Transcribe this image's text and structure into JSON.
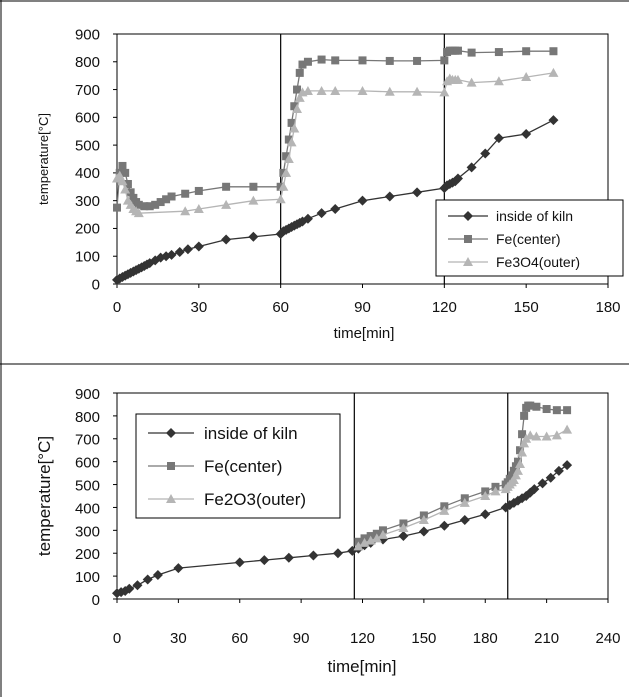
{
  "chart_data": [
    {
      "type": "line",
      "xlabel": "time[min]",
      "ylabel": "temperature[°C]",
      "xlim": [
        0,
        180
      ],
      "ylim": [
        0,
        900
      ],
      "xticks": [
        "0",
        "30",
        "60",
        "90",
        "120",
        "150",
        "180"
      ],
      "yticks": [
        "0",
        "100",
        "200",
        "300",
        "400",
        "500",
        "600",
        "700",
        "800",
        "900"
      ],
      "vlines": [
        60,
        120
      ],
      "legend_position": "lower-right",
      "grid": false,
      "series": [
        {
          "name": "inside of kiln",
          "marker": "diamond",
          "color": "#333333",
          "x": [
            0,
            1,
            2,
            3,
            4,
            5,
            6,
            7,
            8,
            9,
            10,
            11,
            12,
            14,
            16,
            18,
            20,
            23,
            26,
            30,
            40,
            50,
            60,
            61,
            62,
            63,
            64,
            65,
            66,
            67,
            68,
            70,
            75,
            80,
            90,
            100,
            110,
            120,
            121,
            122,
            123,
            124,
            125,
            130,
            135,
            140,
            150,
            160
          ],
          "y": [
            15,
            20,
            25,
            30,
            35,
            40,
            45,
            50,
            55,
            60,
            65,
            70,
            75,
            85,
            95,
            100,
            105,
            115,
            125,
            135,
            160,
            170,
            180,
            190,
            195,
            200,
            205,
            210,
            215,
            220,
            225,
            235,
            255,
            270,
            300,
            315,
            330,
            345,
            355,
            360,
            365,
            370,
            380,
            420,
            470,
            525,
            540,
            590
          ]
        },
        {
          "name": "Fe(center)",
          "marker": "square",
          "color": "#777777",
          "x": [
            0,
            1,
            2,
            3,
            4,
            5,
            6,
            7,
            8,
            10,
            12,
            14,
            16,
            18,
            20,
            25,
            30,
            40,
            50,
            60,
            61,
            62,
            63,
            64,
            65,
            66,
            67,
            68,
            70,
            75,
            80,
            90,
            100,
            110,
            120,
            121,
            122,
            123,
            124,
            125,
            130,
            140,
            150,
            160
          ],
          "y": [
            275,
            400,
            425,
            400,
            360,
            330,
            310,
            295,
            285,
            280,
            280,
            285,
            295,
            305,
            315,
            325,
            335,
            350,
            350,
            350,
            400,
            460,
            520,
            580,
            640,
            700,
            760,
            790,
            800,
            808,
            805,
            805,
            803,
            803,
            805,
            835,
            840,
            840,
            840,
            840,
            833,
            835,
            838,
            838
          ]
        },
        {
          "name": "Fe3O4(outer)",
          "marker": "triangle",
          "color": "#b5b5b5",
          "x": [
            0,
            1,
            2,
            3,
            4,
            5,
            6,
            7,
            8,
            25,
            30,
            40,
            50,
            60,
            61,
            62,
            63,
            64,
            65,
            66,
            67,
            68,
            70,
            75,
            80,
            90,
            100,
            110,
            120,
            121,
            122,
            123,
            124,
            125,
            130,
            140,
            150,
            160
          ],
          "y": [
            380,
            390,
            370,
            340,
            300,
            285,
            270,
            262,
            255,
            262,
            270,
            285,
            300,
            305,
            350,
            400,
            450,
            510,
            560,
            630,
            670,
            690,
            695,
            695,
            695,
            695,
            692,
            692,
            690,
            730,
            740,
            735,
            735,
            735,
            725,
            730,
            745,
            760
          ]
        }
      ]
    },
    {
      "type": "line",
      "xlabel": "time[min]",
      "ylabel": "temperature[°C]",
      "xlim": [
        0,
        240
      ],
      "ylim": [
        0,
        900
      ],
      "xticks": [
        "0",
        "30",
        "60",
        "90",
        "120",
        "150",
        "180",
        "210",
        "240"
      ],
      "yticks": [
        "0",
        "100",
        "200",
        "300",
        "400",
        "500",
        "600",
        "700",
        "800",
        "900"
      ],
      "vlines": [
        116,
        191
      ],
      "legend_position": "top-left",
      "grid": false,
      "series": [
        {
          "name": "inside of kiln",
          "marker": "diamond",
          "color": "#333333",
          "x": [
            0,
            2,
            4,
            6,
            10,
            15,
            20,
            30,
            60,
            72,
            84,
            96,
            108,
            115,
            118,
            121,
            124,
            130,
            140,
            150,
            160,
            170,
            180,
            190,
            192,
            194,
            196,
            198,
            200,
            202,
            204,
            208,
            212,
            216,
            220
          ],
          "y": [
            25,
            30,
            35,
            45,
            60,
            85,
            105,
            135,
            160,
            170,
            180,
            190,
            200,
            210,
            220,
            235,
            245,
            260,
            275,
            295,
            320,
            345,
            370,
            400,
            410,
            420,
            430,
            440,
            450,
            465,
            480,
            505,
            530,
            560,
            585
          ]
        },
        {
          "name": "Fe(center)",
          "marker": "square",
          "color": "#777777",
          "x": [
            118,
            121,
            124,
            127,
            130,
            140,
            150,
            160,
            170,
            180,
            185,
            190,
            191,
            192,
            193,
            194,
            195,
            196,
            197,
            198,
            199,
            200,
            201,
            202,
            205,
            210,
            215,
            220
          ],
          "y": [
            250,
            265,
            275,
            285,
            300,
            330,
            365,
            405,
            440,
            470,
            490,
            500,
            510,
            525,
            540,
            560,
            580,
            600,
            650,
            720,
            800,
            835,
            845,
            845,
            840,
            830,
            825,
            825
          ]
        },
        {
          "name": "Fe2O3(outer)",
          "marker": "triangle",
          "color": "#b5b5b5",
          "x": [
            118,
            121,
            124,
            127,
            130,
            140,
            150,
            160,
            170,
            180,
            185,
            190,
            191,
            192,
            193,
            194,
            195,
            196,
            197,
            198,
            199,
            200,
            202,
            205,
            210,
            215,
            220
          ],
          "y": [
            230,
            245,
            255,
            265,
            280,
            310,
            345,
            385,
            420,
            450,
            470,
            480,
            490,
            500,
            510,
            520,
            540,
            560,
            590,
            640,
            680,
            700,
            715,
            710,
            710,
            715,
            740
          ]
        }
      ]
    }
  ]
}
